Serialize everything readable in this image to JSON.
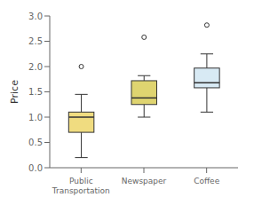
{
  "chart_data": {
    "type": "box",
    "categories": [
      "Public\nTransportation",
      "Newspaper",
      "Coffee"
    ],
    "boxes": [
      {
        "q1": 0.7,
        "median": 1.0,
        "q3": 1.1,
        "whislo": 0.2,
        "whishi": 1.45,
        "fliers": [
          2.0
        ]
      },
      {
        "q1": 1.25,
        "median": 1.38,
        "q3": 1.72,
        "whislo": 1.0,
        "whishi": 1.82,
        "fliers": [
          2.58
        ]
      },
      {
        "q1": 1.58,
        "median": 1.68,
        "q3": 1.97,
        "whislo": 1.1,
        "whishi": 2.25,
        "fliers": [
          2.82
        ]
      }
    ],
    "colors": [
      "#f0dc80",
      "#dfd470",
      "#d8eaf4"
    ],
    "ylabel": "Price",
    "ylim": [
      0.0,
      3.0
    ],
    "yticks": [
      {
        "value": 0,
        "label": "0.0"
      },
      0.5,
      {
        "value": 1,
        "label": "1.0"
      },
      1.5,
      {
        "value": 2,
        "label": "2.0"
      },
      2.5,
      {
        "value": 3,
        "label": "3.0"
      }
    ],
    "grid": false
  }
}
